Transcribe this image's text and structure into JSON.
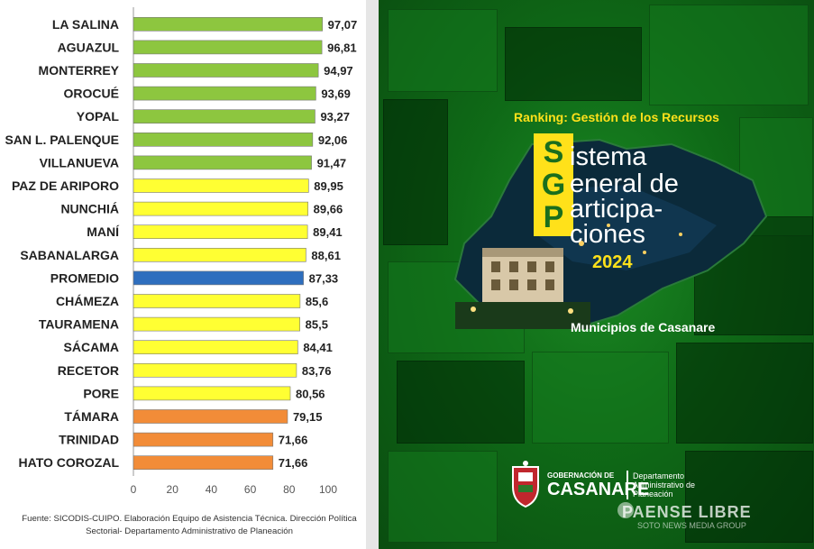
{
  "chart_data": {
    "type": "bar",
    "orientation": "horizontal",
    "categories": [
      "LA SALINA",
      "AGUAZUL",
      "MONTERREY",
      "OROCUÉ",
      "YOPAL",
      "SAN L. PALENQUE",
      "VILLANUEVA",
      "PAZ DE ARIPORO",
      "NUNCHIÁ",
      "MANÍ",
      "SABANALARGA",
      "PROMEDIO",
      "CHÁMEZA",
      "TAURAMENA",
      "SÁCAMA",
      "RECETOR",
      "PORE",
      "TÁMARA",
      "TRINIDAD",
      "HATO COROZAL"
    ],
    "values": [
      97.07,
      96.81,
      94.97,
      93.69,
      93.27,
      92.06,
      91.47,
      89.95,
      89.66,
      89.41,
      88.61,
      87.33,
      85.6,
      85.5,
      84.41,
      83.76,
      80.56,
      79.15,
      71.66,
      71.66
    ],
    "value_labels": [
      "97,07",
      "96,81",
      "94,97",
      "93,69",
      "93,27",
      "92,06",
      "91,47",
      "89,95",
      "89,66",
      "89,41",
      "88,61",
      "87,33",
      "85,6",
      "85,5",
      "84,41",
      "83,76",
      "80,56",
      "79,15",
      "71,66",
      "71,66"
    ],
    "bar_colors": [
      "#8dc63f",
      "#8dc63f",
      "#8dc63f",
      "#8dc63f",
      "#8dc63f",
      "#8dc63f",
      "#8dc63f",
      "#ffff33",
      "#ffff33",
      "#ffff33",
      "#ffff33",
      "#2e6ebe",
      "#ffff33",
      "#ffff33",
      "#ffff33",
      "#ffff33",
      "#ffff33",
      "#f28c38",
      "#f28c38",
      "#f28c38"
    ],
    "xlim": [
      0,
      100
    ],
    "xticks": [
      "0",
      "20",
      "40",
      "60",
      "80",
      "100"
    ],
    "xtick_values": [
      0,
      20,
      40,
      60,
      80,
      100
    ],
    "grid": false,
    "source": "Fuente: SICODIS-CUIPO. Elaboración Equipo de Asistencia Técnica. Dirección Política Sectorial- Departamento Administrativo de Planeación"
  },
  "poster": {
    "ranking": "Ranking: Gestión de los Recursos",
    "sgp_letters": [
      "S",
      "G",
      "P"
    ],
    "title_lines": [
      "istema",
      "eneral de",
      "articipa-",
      "ciones"
    ],
    "year": "2024",
    "subtitle": "Municipios de Casanare",
    "logo_line1": "GOBERNACIÓN DE",
    "logo_line2": "CASANARE",
    "dept": "Departamento Administrativo de Planeación",
    "watermark": "PAENSE LIBRE",
    "watermark_sub": "SOTO NEWS MEDIA GROUP",
    "colors": {
      "green_bg": "#0f6a17",
      "yellow": "#ffe11a"
    }
  }
}
